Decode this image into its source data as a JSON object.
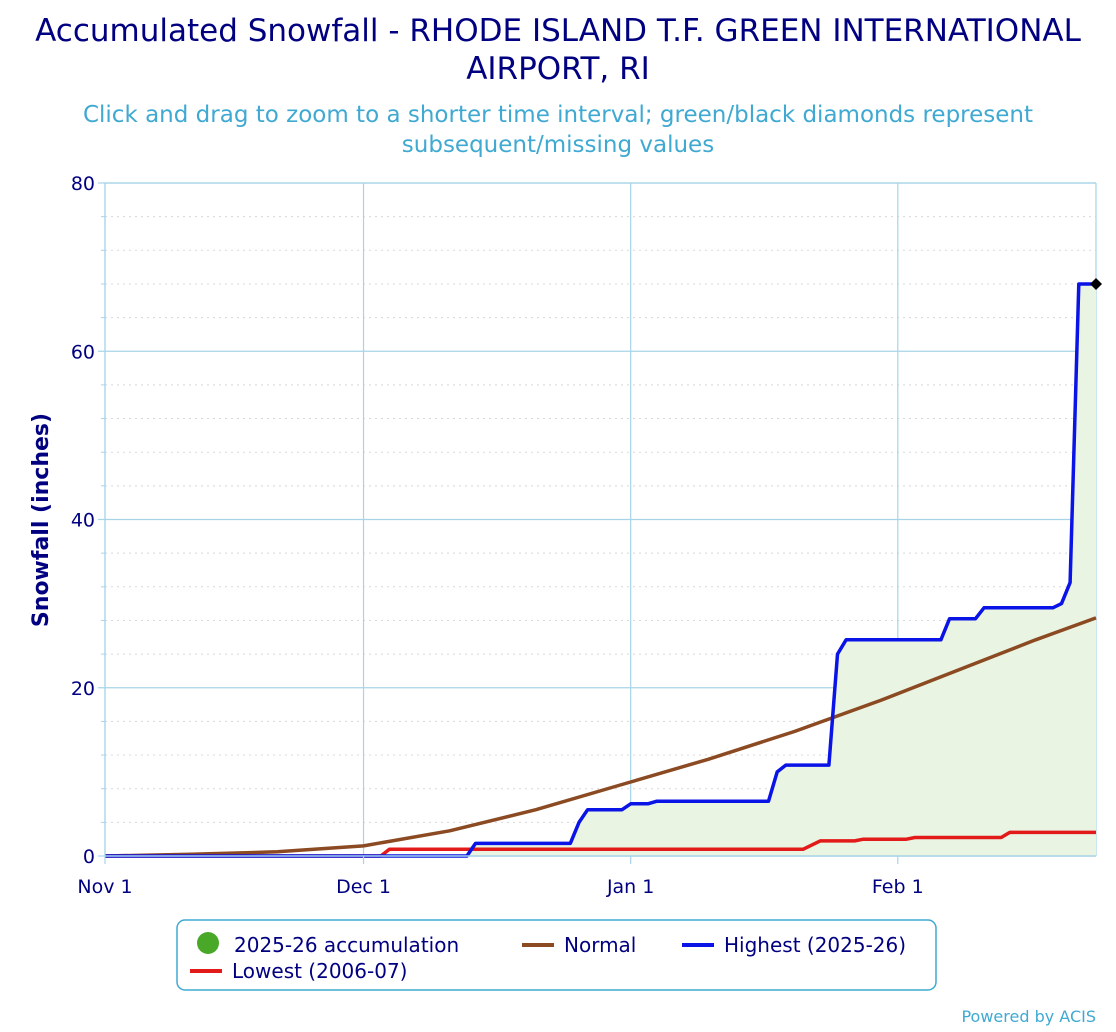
{
  "chart_data": {
    "type": "line",
    "title": "Accumulated Snowfall - RHODE ISLAND T.F. GREEN INTERNATIONAL AIRPORT, RI",
    "subtitle": "Click and drag to zoom to a shorter time interval; green/black diamonds represent subsequent/missing values",
    "ylabel": "Snowfall (inches)",
    "xlabel": "",
    "ylim": [
      0,
      80
    ],
    "yticks": [
      "0",
      "20",
      "40",
      "60",
      "80"
    ],
    "xlim": [
      "Nov 1",
      "Feb 25"
    ],
    "xticks": [
      {
        "label": "Nov 1",
        "day": 0
      },
      {
        "label": "Dec 1",
        "day": 30
      },
      {
        "label": "Jan 1",
        "day": 61
      },
      {
        "label": "Feb 1",
        "day": 92
      }
    ],
    "grid": true,
    "legend_position": "bottom-center",
    "series": [
      {
        "name": "2025-26 accumulation",
        "type": "area",
        "color": "#4aa829",
        "fill": "#e9f4e3",
        "points": [
          [
            0,
            0
          ],
          [
            42,
            0
          ],
          [
            43,
            1.5
          ],
          [
            54,
            1.5
          ],
          [
            55,
            4
          ],
          [
            56,
            5.5
          ],
          [
            60,
            5.5
          ],
          [
            61,
            6.2
          ],
          [
            63,
            6.2
          ],
          [
            64,
            6.5
          ],
          [
            77,
            6.5
          ],
          [
            78,
            10
          ],
          [
            79,
            10.8
          ],
          [
            84,
            10.8
          ],
          [
            85,
            24
          ],
          [
            86,
            25.7
          ],
          [
            97,
            25.7
          ],
          [
            98,
            28.2
          ],
          [
            101,
            28.2
          ],
          [
            102,
            29.5
          ],
          [
            110,
            29.5
          ],
          [
            111,
            30
          ],
          [
            112,
            32.5
          ],
          [
            113,
            68
          ],
          [
            115,
            68
          ]
        ]
      },
      {
        "name": "Normal",
        "type": "line",
        "color": "#8b4a21",
        "points": [
          [
            0,
            0
          ],
          [
            10,
            0.2
          ],
          [
            20,
            0.5
          ],
          [
            30,
            1.2
          ],
          [
            40,
            3
          ],
          [
            50,
            5.5
          ],
          [
            60,
            8.5
          ],
          [
            70,
            11.5
          ],
          [
            80,
            14.8
          ],
          [
            90,
            18.5
          ],
          [
            100,
            22.5
          ],
          [
            108,
            25.7
          ],
          [
            115,
            28.3
          ]
        ]
      },
      {
        "name": "Highest (2025-26)",
        "type": "line",
        "color": "#0a14e6",
        "points": [
          [
            0,
            0
          ],
          [
            42,
            0
          ],
          [
            43,
            1.5
          ],
          [
            54,
            1.5
          ],
          [
            55,
            4
          ],
          [
            56,
            5.5
          ],
          [
            60,
            5.5
          ],
          [
            61,
            6.2
          ],
          [
            63,
            6.2
          ],
          [
            64,
            6.5
          ],
          [
            77,
            6.5
          ],
          [
            78,
            10
          ],
          [
            79,
            10.8
          ],
          [
            84,
            10.8
          ],
          [
            85,
            24
          ],
          [
            86,
            25.7
          ],
          [
            97,
            25.7
          ],
          [
            98,
            28.2
          ],
          [
            101,
            28.2
          ],
          [
            102,
            29.5
          ],
          [
            110,
            29.5
          ],
          [
            111,
            30
          ],
          [
            112,
            32.5
          ],
          [
            113,
            68
          ],
          [
            115,
            68
          ]
        ]
      },
      {
        "name": "Lowest (2006-07)",
        "type": "line",
        "color": "#e31a1a",
        "points": [
          [
            0,
            0
          ],
          [
            32,
            0
          ],
          [
            33,
            0.8
          ],
          [
            81,
            0.8
          ],
          [
            83,
            1.8
          ],
          [
            87,
            1.8
          ],
          [
            88,
            2
          ],
          [
            93,
            2
          ],
          [
            94,
            2.2
          ],
          [
            104,
            2.2
          ],
          [
            105,
            2.8
          ],
          [
            115,
            2.8
          ]
        ]
      }
    ],
    "markers": [
      {
        "series": "2025-26 accumulation",
        "shape": "diamond",
        "color": "#000000",
        "point": [
          115,
          68
        ]
      }
    ]
  },
  "credits": "Powered by ACIS"
}
